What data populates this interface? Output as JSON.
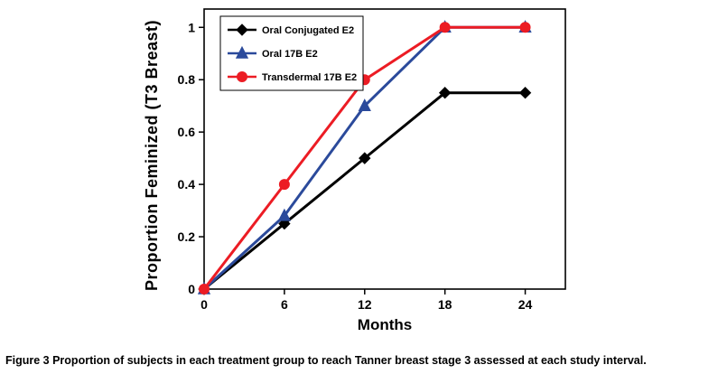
{
  "figure": {
    "caption_label": "Figure 3",
    "caption_text": "Proportion of subjects in each treatment group to reach Tanner breast stage 3 assessed at each study interval."
  },
  "chart_data": {
    "type": "line",
    "title": "",
    "xlabel": "Months",
    "ylabel": "Proportion Feminized (T3 Breast)",
    "x": [
      0,
      6,
      12,
      18,
      24
    ],
    "x_ticks": [
      "0",
      "6",
      "12",
      "18",
      "24"
    ],
    "y_ticks": [
      "0",
      "0.2",
      "0.4",
      "0.6",
      "0.8",
      "1"
    ],
    "y_tick_values": [
      0,
      0.2,
      0.4,
      0.6,
      0.8,
      1
    ],
    "xlim": [
      0,
      27
    ],
    "ylim": [
      0,
      1.07
    ],
    "grid": false,
    "legend_position": "top-left",
    "series": [
      {
        "name": "Oral Conjugated E2",
        "color": "#000000",
        "marker": "diamond",
        "values": [
          0,
          0.25,
          0.5,
          0.75,
          0.75
        ]
      },
      {
        "name": "Oral 17B E2",
        "color": "#2b4a9b",
        "marker": "triangle",
        "values": [
          0,
          0.28,
          0.7,
          1,
          1
        ]
      },
      {
        "name": "Transdermal 17B E2",
        "color": "#ec1c24",
        "marker": "circle",
        "values": [
          0,
          0.4,
          0.8,
          1,
          1
        ]
      }
    ]
  }
}
